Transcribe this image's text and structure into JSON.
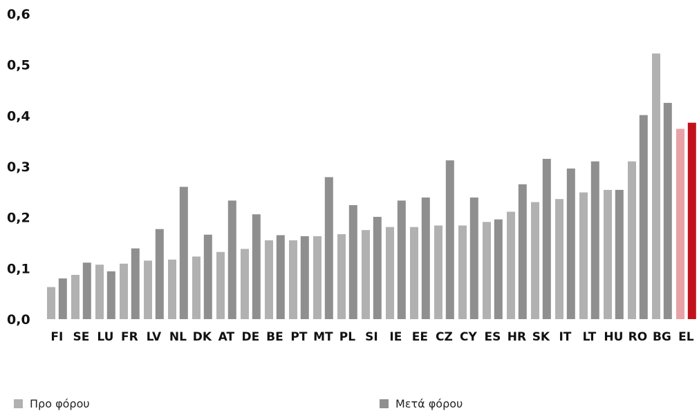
{
  "chart_data": {
    "type": "bar",
    "categories": [
      "FI",
      "SE",
      "LU",
      "FR",
      "LV",
      "NL",
      "DK",
      "AT",
      "DE",
      "BE",
      "PT",
      "MT",
      "PL",
      "SI",
      "IE",
      "EE",
      "CZ",
      "CY",
      "ES",
      "HR",
      "SK",
      "IT",
      "LT",
      "HU",
      "RO",
      "BG",
      "EL"
    ],
    "series": [
      {
        "name": "Προ φόρου",
        "values": [
          0.063,
          0.087,
          0.107,
          0.109,
          0.115,
          0.117,
          0.123,
          0.132,
          0.138,
          0.155,
          0.155,
          0.163,
          0.167,
          0.175,
          0.181,
          0.181,
          0.184,
          0.184,
          0.191,
          0.211,
          0.23,
          0.236,
          0.249,
          0.254,
          0.31,
          0.522,
          0.374
        ]
      },
      {
        "name": "Μετά φόρου",
        "values": [
          0.08,
          0.111,
          0.094,
          0.139,
          0.177,
          0.26,
          0.166,
          0.233,
          0.206,
          0.165,
          0.163,
          0.279,
          0.224,
          0.201,
          0.233,
          0.239,
          0.312,
          0.239,
          0.196,
          0.265,
          0.315,
          0.296,
          0.31,
          0.254,
          0.401,
          0.425,
          0.386
        ]
      }
    ],
    "ylim": [
      0,
      0.6
    ],
    "yticks": [
      "0,0",
      "0,1",
      "0,2",
      "0,3",
      "0,4",
      "0,5",
      "0,6"
    ],
    "grid": false,
    "legend_position": "bottom",
    "colors": {
      "pre_tax": "#b1b1b1",
      "post_tax": "#8f8f8f",
      "highlight_pre_tax": "#e8a2a6",
      "highlight_post_tax": "#c1121c"
    },
    "highlight_category": "EL"
  },
  "legend": {
    "pre_tax_label": "Προ φόρου",
    "post_tax_label": "Μετά φόρου"
  }
}
